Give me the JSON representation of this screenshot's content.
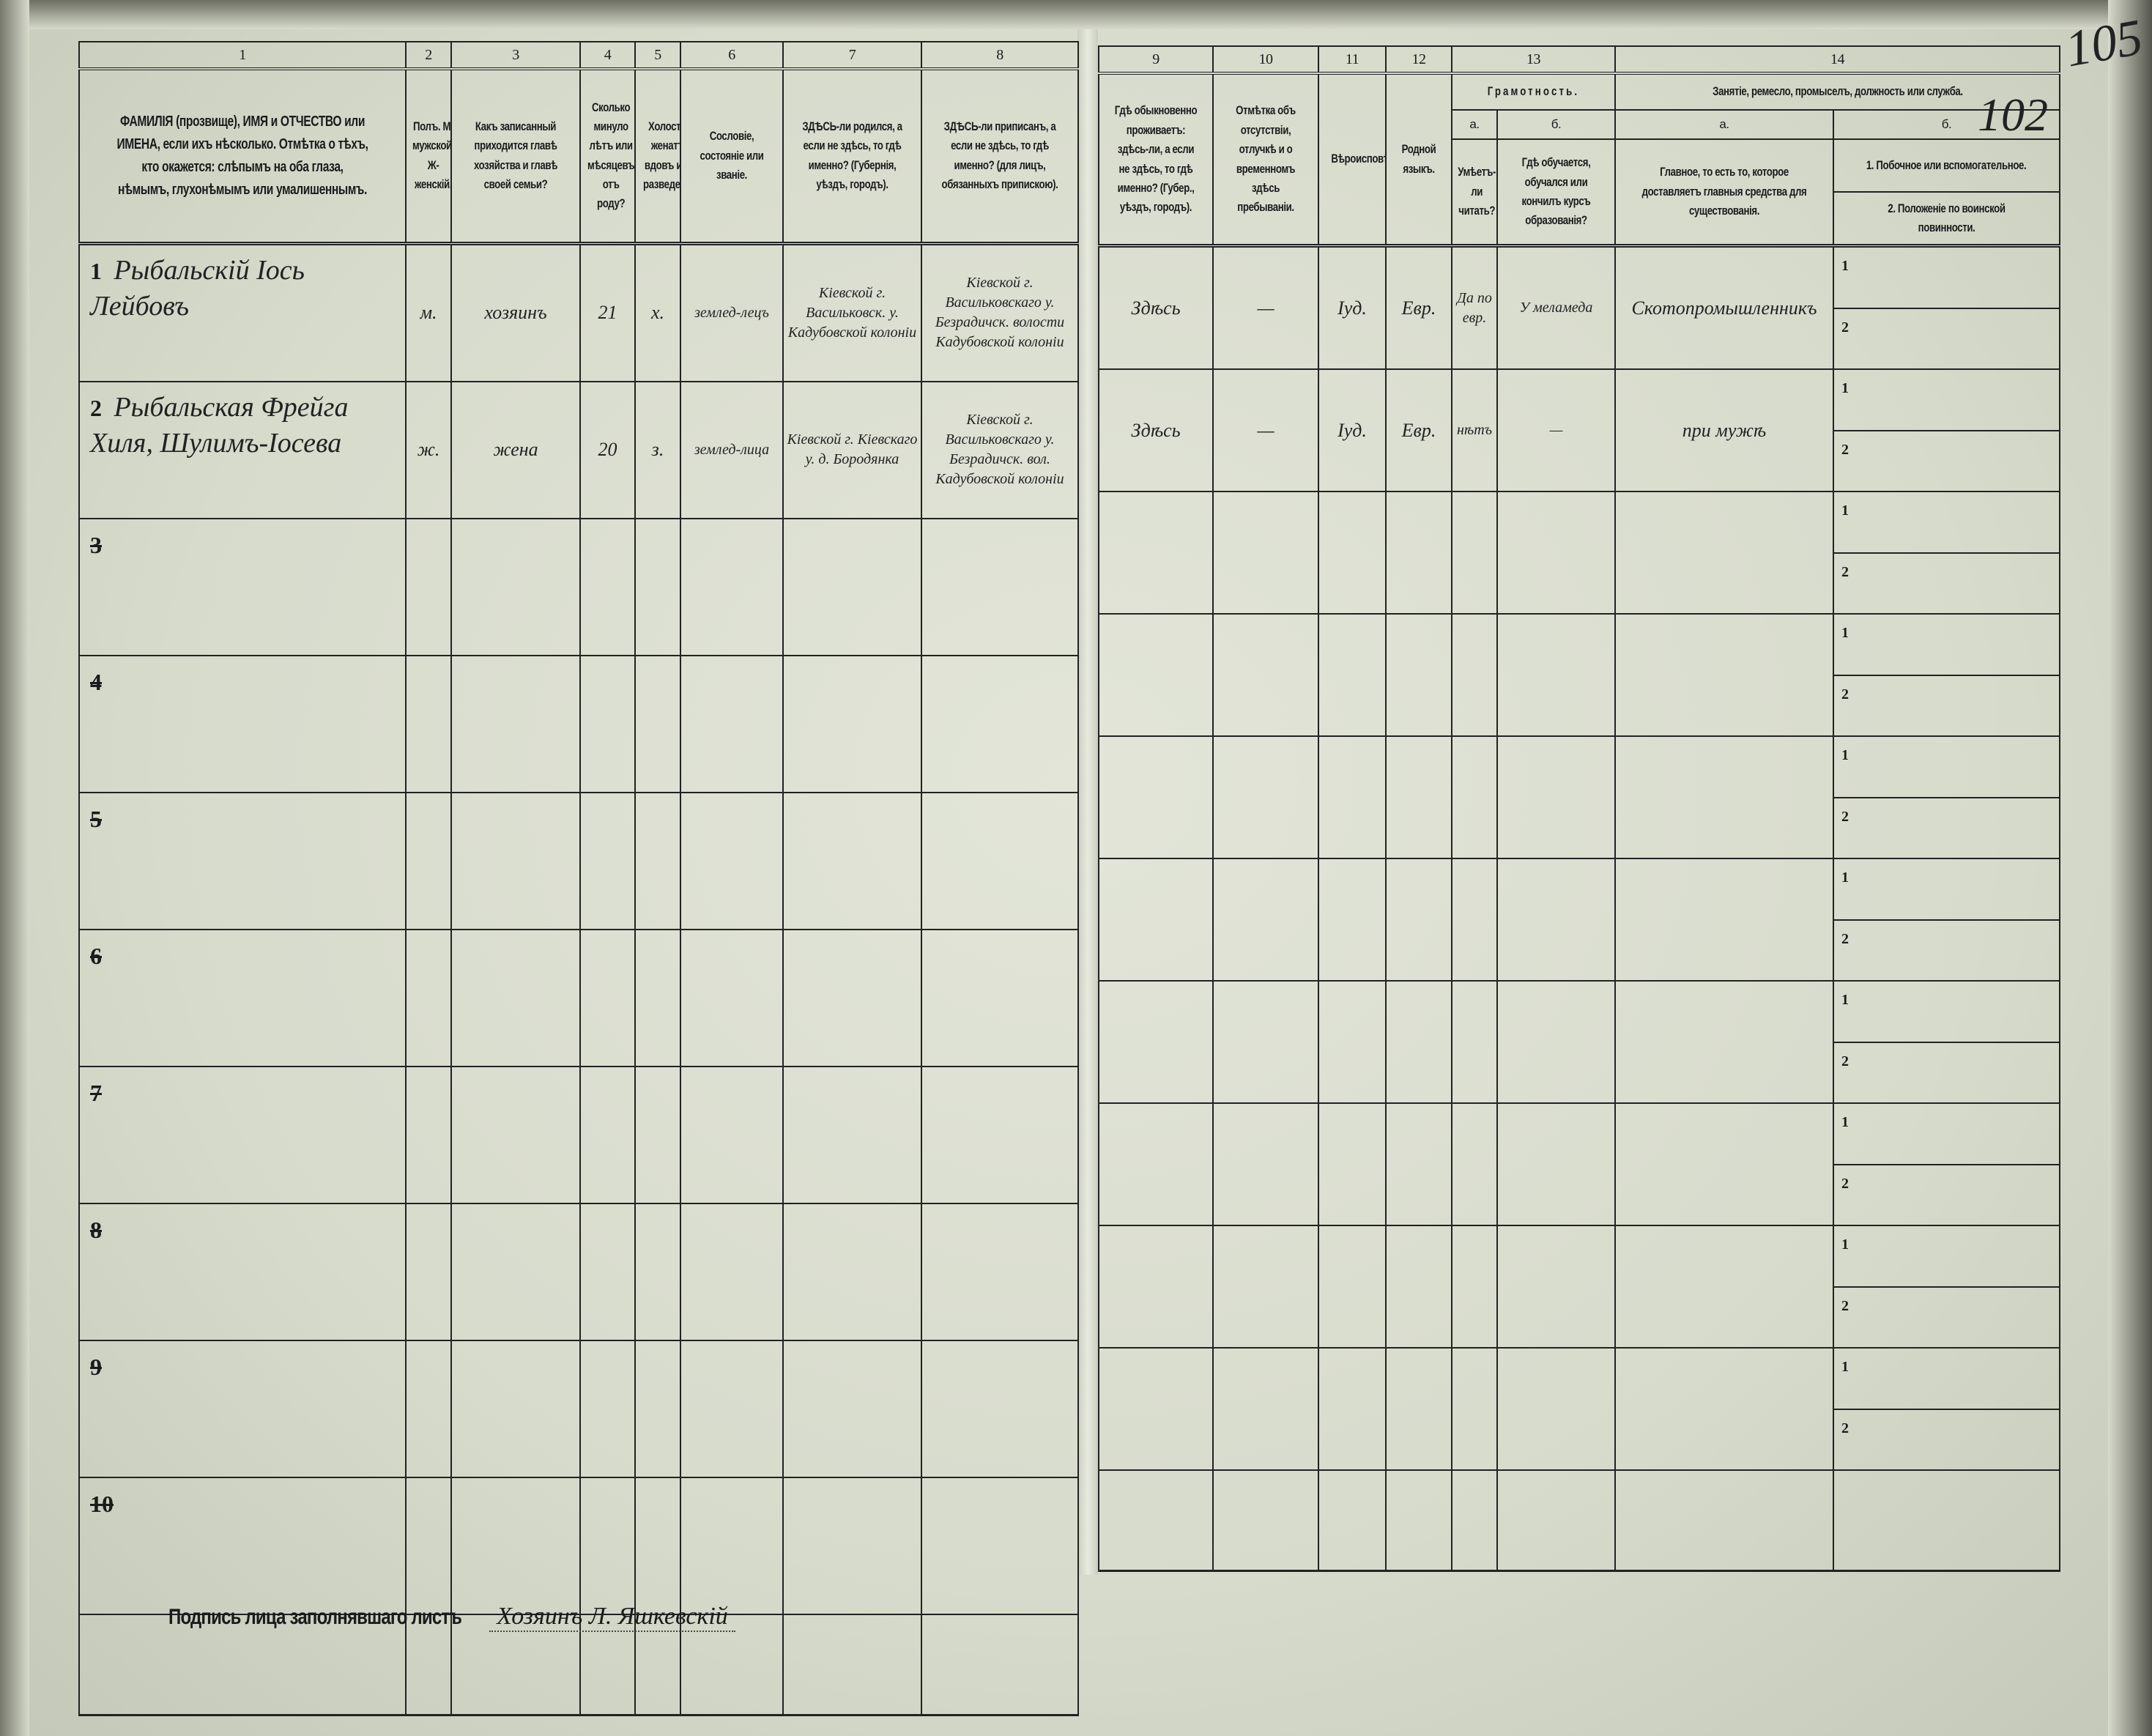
{
  "page_numbers": {
    "primary": "105",
    "secondary": "102"
  },
  "left_columns": [
    {
      "num": "1",
      "header": "ФАМИЛІЯ (прозвище), ИМЯ и ОТЧЕСТВО или ИМЕНА, если ихъ нѣсколько. Отмѣтка о тѣхъ, кто окажется: слѣпымъ на оба глаза, нѣмымъ, глухонѣмымъ или умалишеннымъ."
    },
    {
      "num": "2",
      "header": "Полъ. М-мужской. Ж-женскій."
    },
    {
      "num": "3",
      "header": "Какъ записанный приходится главѣ хозяйства и главѣ своей семьи?"
    },
    {
      "num": "4",
      "header": "Сколько минуло лѣтъ или мѣсяцевъ отъ роду?"
    },
    {
      "num": "5",
      "header": "Холостъ, женатъ, вдовъ или разведенъ."
    },
    {
      "num": "6",
      "header": "Сословіе, состояніе или званіе."
    },
    {
      "num": "7",
      "header": "ЗДѢСЬ-ли родился, а если не здѣсь, то гдѣ именно? (Губернія, уѣздъ, городъ)."
    },
    {
      "num": "8",
      "header": "ЗДѢСЬ-ли приписанъ, а если не здѣсь, то гдѣ именно? (для лицъ, обязанныхъ припискою)."
    }
  ],
  "right_columns": {
    "c9": {
      "num": "9",
      "header": "Гдѣ обыкновенно проживаетъ: здѣсь-ли, а если не здѣсь, то гдѣ именно? (Губер., уѣздъ, городъ)."
    },
    "c10": {
      "num": "10",
      "header": "Отмѣтка объ отсутствіи, отлучкѣ и о временномъ здѣсь пребываніи."
    },
    "c11": {
      "num": "11",
      "header": "Вѣроисповѣданіе."
    },
    "c12": {
      "num": "12",
      "header": "Родной языкъ."
    },
    "c13": {
      "num": "13",
      "header": "Грамотность.",
      "a_label": "а.",
      "a_header": "Умѣетъ-ли читать?",
      "b_label": "б.",
      "b_header": "Гдѣ обучается, обучался или кончилъ курсъ образованія?"
    },
    "c14": {
      "num": "14",
      "header": "Занятіе, ремесло, промыселъ, должность или служба.",
      "a_label": "а.",
      "a_header": "Главное, то есть то, которое доставляетъ главныя средства для существованія.",
      "b_label": "б.",
      "b1_header": "1. Побочное или вспомогательное.",
      "b2_header": "2. Положеніе по воинской повинности."
    }
  },
  "sub_markers": {
    "one": "1",
    "two": "2"
  },
  "rows": [
    {
      "num": "1",
      "struck": false,
      "name": "Рыбальскій Іось Лейбовъ",
      "sex": "м.",
      "relation": "хозяинъ",
      "age": "21",
      "marital": "х.",
      "estate": "землед-лецъ",
      "birthplace": "Кіевской г. Васильковск. у. Кадубовской колоніи",
      "registered": "Кіевской г. Васильковскаго у. Безрадичск. волости Кадубовской колоніи",
      "residence": "Здѣсь",
      "absence": "—",
      "religion": "Іуд.",
      "language": "Евр.",
      "can_read": "Да по евр.",
      "education": "У меламеда",
      "occupation_main": "Скотопромышленникъ",
      "occupation_side": "",
      "military": ""
    },
    {
      "num": "2",
      "struck": false,
      "name": "Рыбальская Фрейга Хиля, Шулимъ-Іосева",
      "sex": "ж.",
      "relation": "жена",
      "age": "20",
      "marital": "з.",
      "estate": "землед-лица",
      "birthplace": "Кіевской г. Кіевскаго у. д. Бородянка",
      "registered": "Кіевской г. Васильковскаго у. Безрадичск. вол. Кадубовской колоніи",
      "residence": "Здѣсь",
      "absence": "—",
      "religion": "Іуд.",
      "language": "Евр.",
      "can_read": "нѣтъ",
      "education": "—",
      "occupation_main": "при мужѣ",
      "occupation_side": "",
      "military": ""
    },
    {
      "num": "3",
      "struck": true
    },
    {
      "num": "4",
      "struck": true
    },
    {
      "num": "5",
      "struck": true
    },
    {
      "num": "6",
      "struck": true
    },
    {
      "num": "7",
      "struck": true
    },
    {
      "num": "8",
      "struck": true
    },
    {
      "num": "9",
      "struck": true
    },
    {
      "num": "10",
      "struck": true
    }
  ],
  "signature": {
    "label": "Подпись лица заполнявшаго листъ",
    "value": "Хозяинъ Л. Яшкевскій"
  }
}
